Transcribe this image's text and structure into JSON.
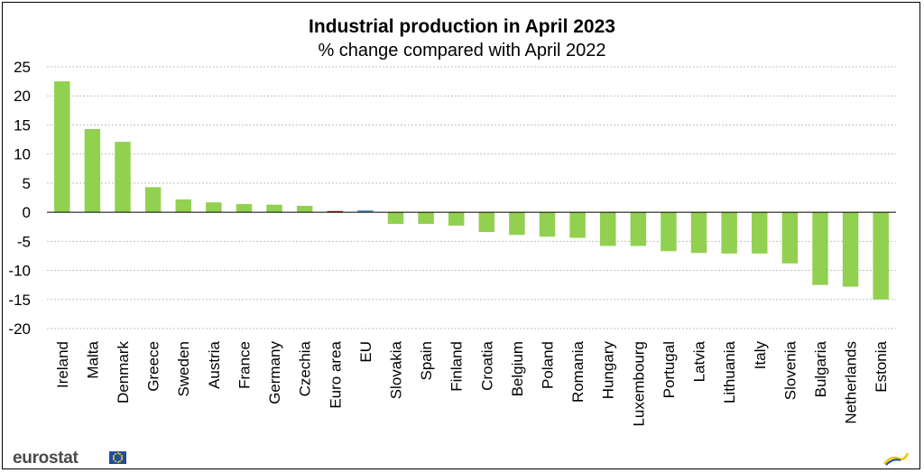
{
  "chart_data": {
    "type": "bar",
    "title": "Industrial production  in April 2023",
    "subtitle": "% change compared with April 2022",
    "categories": [
      "Ireland",
      "Malta",
      "Denmark",
      "Greece",
      "Sweden",
      "Austria",
      "France",
      "Germany",
      "Czechia",
      "Euro area",
      "EU",
      "Slovakia",
      "Spain",
      "Finland",
      "Croatia",
      "Belgium",
      "Poland",
      "Romania",
      "Hungary",
      "Luxembourg",
      "Portugal",
      "Latvia",
      "Lithuania",
      "Italy",
      "Slovenia",
      "Bulgaria",
      "Netherlands",
      "Estonia"
    ],
    "values": [
      22.5,
      14.3,
      12.1,
      4.3,
      2.2,
      1.7,
      1.4,
      1.3,
      1.1,
      0.2,
      0.1,
      -2.0,
      -2.0,
      -2.3,
      -3.4,
      -3.9,
      -4.2,
      -4.4,
      -5.8,
      -5.8,
      -6.7,
      -7.0,
      -7.1,
      -7.1,
      -8.8,
      -12.5,
      -12.8,
      -15.0
    ],
    "colors": {
      "default": "#92d050",
      "Euro area": "#c00000",
      "EU": "#1f77b4"
    },
    "ylim": [
      -20,
      25
    ],
    "yticks": [
      25,
      20,
      15,
      10,
      5,
      0,
      -5,
      -10,
      -15,
      -20
    ],
    "grid": true,
    "legend": "none",
    "xlabel": "",
    "ylabel": ""
  },
  "branding": {
    "logo_text": "eurostat"
  }
}
